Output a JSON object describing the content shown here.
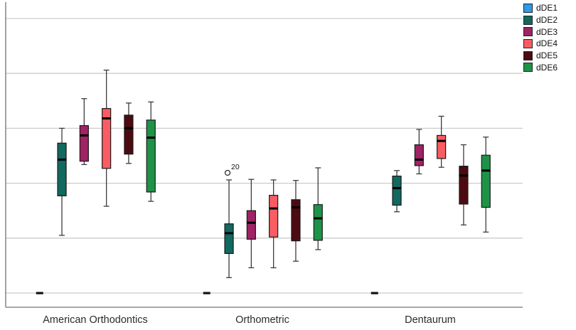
{
  "chart_data": {
    "type": "boxplot",
    "title": "",
    "xlabel": "",
    "ylabel": "",
    "y_axis": {
      "tick_labels_visible": false,
      "gridline_values": [
        0,
        1,
        2,
        3,
        4,
        5
      ],
      "ylim": [
        -0.28,
        5.3
      ],
      "grid": "horizontal",
      "note": "y axis has no visible tick labels; values estimated in gridline units (0 = bottom gridline where dDE1 marks sit)"
    },
    "legend_position": "top-right-outside",
    "categories": [
      "American Orthodontics",
      "Orthometric",
      "Dentaurum"
    ],
    "series": [
      {
        "name": "dDE1",
        "color": "#2D9BE8",
        "boxes": [
          {
            "whisker_low": 0,
            "q1": 0,
            "median": 0,
            "q3": 0,
            "whisker_high": 0
          },
          {
            "whisker_low": 0,
            "q1": 0,
            "median": 0,
            "q3": 0,
            "whisker_high": 0
          },
          {
            "whisker_low": 0,
            "q1": 0,
            "median": 0,
            "q3": 0,
            "whisker_high": 0
          }
        ]
      },
      {
        "name": "dDE2",
        "color": "#11695F",
        "boxes": [
          {
            "whisker_low": 1.05,
            "q1": 1.77,
            "median": 2.43,
            "q3": 2.73,
            "whisker_high": 3.0
          },
          {
            "whisker_low": 0.28,
            "q1": 0.72,
            "median": 1.09,
            "q3": 1.26,
            "whisker_high": 2.06
          },
          {
            "whisker_low": 1.48,
            "q1": 1.6,
            "median": 1.91,
            "q3": 2.13,
            "whisker_high": 2.23
          }
        ]
      },
      {
        "name": "dDE3",
        "color": "#A02364",
        "boxes": [
          {
            "whisker_low": 2.34,
            "q1": 2.4,
            "median": 2.87,
            "q3": 3.05,
            "whisker_high": 3.54
          },
          {
            "whisker_low": 0.46,
            "q1": 0.98,
            "median": 1.28,
            "q3": 1.5,
            "whisker_high": 2.07
          },
          {
            "whisker_low": 2.17,
            "q1": 2.32,
            "median": 2.43,
            "q3": 2.7,
            "whisker_high": 2.98
          }
        ]
      },
      {
        "name": "dDE4",
        "color": "#F95C62",
        "boxes": [
          {
            "whisker_low": 1.58,
            "q1": 2.27,
            "median": 3.18,
            "q3": 3.36,
            "whisker_high": 4.06
          },
          {
            "whisker_low": 0.46,
            "q1": 1.02,
            "median": 1.54,
            "q3": 1.78,
            "whisker_high": 2.06
          },
          {
            "whisker_low": 2.29,
            "q1": 2.45,
            "median": 2.77,
            "q3": 2.87,
            "whisker_high": 3.22
          }
        ]
      },
      {
        "name": "dDE5",
        "color": "#4C0B11",
        "boxes": [
          {
            "whisker_low": 2.36,
            "q1": 2.53,
            "median": 3.0,
            "q3": 3.24,
            "whisker_high": 3.46
          },
          {
            "whisker_low": 0.58,
            "q1": 0.95,
            "median": 1.56,
            "q3": 1.7,
            "whisker_high": 2.05
          },
          {
            "whisker_low": 1.24,
            "q1": 1.62,
            "median": 2.14,
            "q3": 2.31,
            "whisker_high": 2.7
          }
        ]
      },
      {
        "name": "dDE6",
        "color": "#1E9347",
        "boxes": [
          {
            "whisker_low": 1.67,
            "q1": 1.84,
            "median": 2.83,
            "q3": 3.15,
            "whisker_high": 3.48
          },
          {
            "whisker_low": 0.79,
            "q1": 0.96,
            "median": 1.36,
            "q3": 1.61,
            "whisker_high": 2.28
          },
          {
            "whisker_low": 1.11,
            "q1": 1.56,
            "median": 2.23,
            "q3": 2.51,
            "whisker_high": 2.84
          }
        ]
      }
    ],
    "outliers": [
      {
        "series": "dDE2",
        "category": "Orthometric",
        "value": 2.19,
        "label": "20"
      }
    ]
  },
  "legend": {
    "items": [
      {
        "label": "dDE1",
        "color": "#2D9BE8"
      },
      {
        "label": "dDE2",
        "color": "#11695F"
      },
      {
        "label": "dDE3",
        "color": "#A02364"
      },
      {
        "label": "dDE4",
        "color": "#F95C62"
      },
      {
        "label": "dDE5",
        "color": "#4C0B11"
      },
      {
        "label": "dDE6",
        "color": "#1E9347"
      }
    ]
  },
  "colors": {
    "background": "#ffffff",
    "gridline": "#cccccc",
    "axis_border": "#8a8a8a",
    "whisker": "#3c3c3c",
    "box_stroke": "#1a1a1a",
    "median": "#000000",
    "label_text": "#2b2b2b"
  }
}
